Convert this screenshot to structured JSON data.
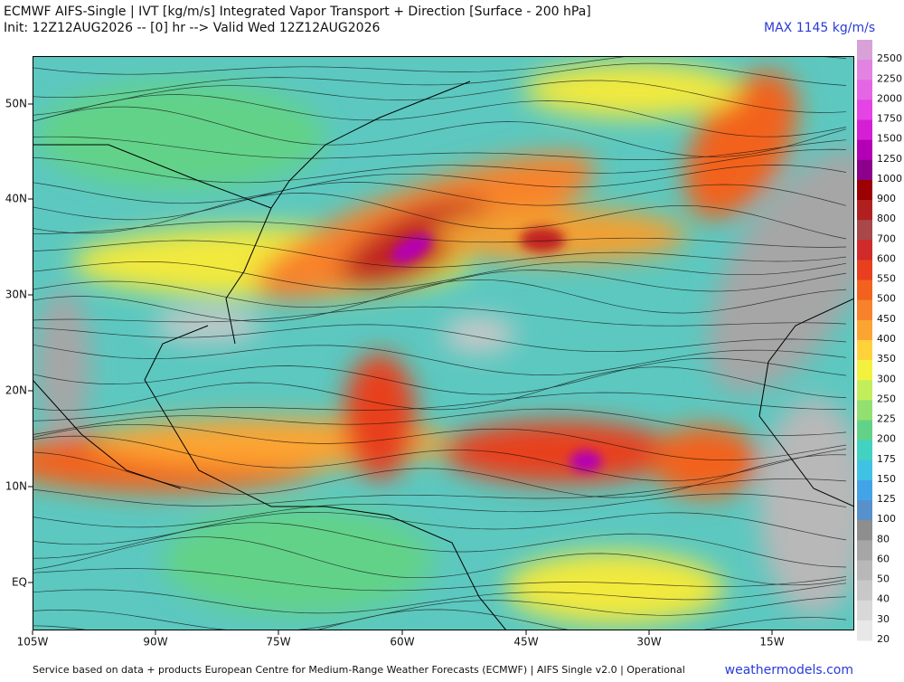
{
  "header": {
    "title_line1": "ECMWF AIFS-Single | IVT [kg/m/s] Integrated Vapor Transport + Direction [Surface - 200 hPa]",
    "title_line2": "Init: 12Z12AUG2026 -- [0] hr --> Valid Wed 12Z12AUG2026",
    "max_label": "MAX 1145 kg/m/s"
  },
  "map": {
    "lat_labels": [
      "50N",
      "40N",
      "30N",
      "20N",
      "10N",
      "EQ"
    ],
    "lon_labels": [
      "105W",
      "90W",
      "75W",
      "60W",
      "45W",
      "30W",
      "15W"
    ]
  },
  "colorbar": {
    "levels": [
      {
        "label": "2500",
        "color": "#d8a2d8"
      },
      {
        "label": "2250",
        "color": "#e283e2"
      },
      {
        "label": "2000",
        "color": "#e466e4"
      },
      {
        "label": "1750",
        "color": "#e444e4"
      },
      {
        "label": "1500",
        "color": "#d41fd4"
      },
      {
        "label": "1250",
        "color": "#b400b4"
      },
      {
        "label": "1000",
        "color": "#8c008c"
      },
      {
        "label": "900",
        "color": "#9c0000"
      },
      {
        "label": "800",
        "color": "#b02020"
      },
      {
        "label": "700",
        "color": "#a84848"
      },
      {
        "label": "600",
        "color": "#d02a2a"
      },
      {
        "label": "550",
        "color": "#e8401e"
      },
      {
        "label": "500",
        "color": "#f2621e"
      },
      {
        "label": "450",
        "color": "#f8822c"
      },
      {
        "label": "400",
        "color": "#fca432"
      },
      {
        "label": "350",
        "color": "#ffd23c"
      },
      {
        "label": "300",
        "color": "#f2f23e"
      },
      {
        "label": "250",
        "color": "#c2ee5c"
      },
      {
        "label": "225",
        "color": "#92e070"
      },
      {
        "label": "200",
        "color": "#62d288"
      },
      {
        "label": "175",
        "color": "#42d2c2"
      },
      {
        "label": "150",
        "color": "#40c2e4"
      },
      {
        "label": "125",
        "color": "#42a4e6"
      },
      {
        "label": "100",
        "color": "#5890cc"
      },
      {
        "label": "80",
        "color": "#8e8e8e"
      },
      {
        "label": "60",
        "color": "#a6a6a6"
      },
      {
        "label": "50",
        "color": "#b8b8b8"
      },
      {
        "label": "40",
        "color": "#c8c8c8"
      },
      {
        "label": "30",
        "color": "#d8d8d8"
      },
      {
        "label": "20",
        "color": "#e8e8e8"
      }
    ]
  },
  "footer": {
    "credit": "Service based on data + products European Centre for Medium-Range Weather Forecasts (ECMWF) | AIFS Single v2.0 | Operational",
    "site": "weathermodels.com"
  }
}
